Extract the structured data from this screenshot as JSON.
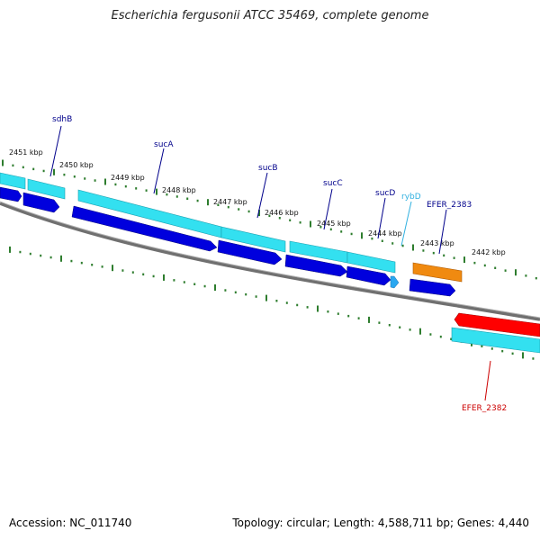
{
  "title": "Escherichia fergusonii ATCC 35469, complete genome",
  "footer": {
    "accession": "Accession: NC_011740",
    "topology": "Topology: circular; Length: 4,588,711 bp; Genes: 4,440"
  },
  "colors": {
    "cds": "#0000dd",
    "gene_forward": "#33e0f0",
    "rna": "#2aa7f0",
    "misc": "#f08a10",
    "reverse_gene": "#ff0000",
    "backbone": "#707070",
    "tick": "#2e7d2e",
    "label_blue": "#00008b",
    "label_red": "#cc0000",
    "label_rna": "#30b0e0"
  },
  "ticks": [
    {
      "label": "2451 kbp"
    },
    {
      "label": "2450 kbp"
    },
    {
      "label": "2449 kbp"
    },
    {
      "label": "2448 kbp"
    },
    {
      "label": "2447 kbp"
    },
    {
      "label": "2446 kbp"
    },
    {
      "label": "2445 kbp"
    },
    {
      "label": "2444 kbp"
    },
    {
      "label": "2443 kbp"
    },
    {
      "label": "2442 kbp"
    }
  ],
  "genes": [
    {
      "name": "sdhB",
      "color": "label_blue"
    },
    {
      "name": "sucA",
      "color": "label_blue"
    },
    {
      "name": "sucB",
      "color": "label_blue"
    },
    {
      "name": "sucC",
      "color": "label_blue"
    },
    {
      "name": "sucD",
      "color": "label_blue"
    },
    {
      "name": "rybD",
      "color": "label_rna"
    },
    {
      "name": "EFER_2383",
      "color": "label_blue"
    },
    {
      "name": "EFER_2382",
      "color": "label_red"
    }
  ]
}
